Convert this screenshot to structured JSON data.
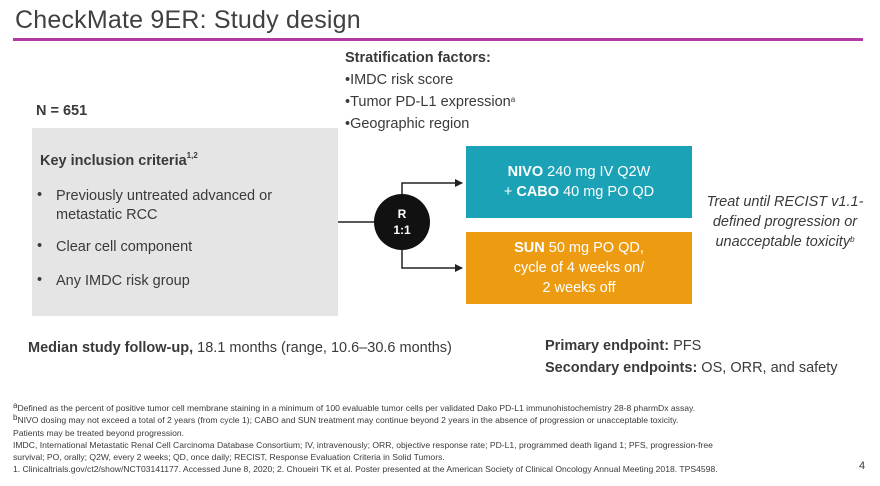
{
  "title": "CheckMate 9ER: Study design",
  "stratification": {
    "heading": "Stratification factors:",
    "items": [
      {
        "text": "•IMDC risk score",
        "sup": ""
      },
      {
        "text": "•Tumor PD-L1 expression",
        "sup": "a"
      },
      {
        "text": "•Geographic region",
        "sup": ""
      }
    ]
  },
  "population": {
    "n_label": "N = 651",
    "heading": "Key inclusion criteria",
    "heading_sup": "1,2",
    "bullet_char": "•",
    "criteria": [
      [
        "Previously untreated advanced or",
        "metastatic RCC"
      ],
      [
        "Clear cell component"
      ],
      [
        "Any IMDC risk group"
      ]
    ]
  },
  "randomization": {
    "line1": "R",
    "line2": "1:1"
  },
  "arms": [
    {
      "line1_bold": "NIVO",
      "line1_rest": " 240 mg IV Q2W",
      "line2_prefix": "+ ",
      "line2_bold": "CABO",
      "line2_rest": " 40 mg PO QD",
      "color": "#1ba2b6"
    },
    {
      "line1_bold": "SUN",
      "line1_rest": " 50 mg PO QD,",
      "line2": "cycle of 4 weeks on/",
      "line3": "2 weeks off",
      "color": "#ed9c12"
    }
  ],
  "treatment": {
    "lines": [
      "Treat until RECIST v1.1-",
      "defined progression or",
      "unacceptable toxicity"
    ],
    "sup": "b"
  },
  "followup": {
    "label": "Median study follow-up,",
    "value": " 18.1 months (range, 10.6–30.6 months)"
  },
  "endpoints": {
    "primary_label": "Primary endpoint:",
    "primary_value": " PFS",
    "secondary_label": "Secondary endpoints:",
    "secondary_value": " OS, ORR, and safety"
  },
  "footnotes": [
    {
      "sup": "a",
      "text": "Defined as the percent of positive tumor cell membrane staining in a minimum of 100 evaluable tumor cells per validated Dako PD-L1 immunohistochemistry 28-8 pharmDx assay."
    },
    {
      "sup": "b",
      "text": "NIVO dosing may not exceed a total of 2 years (from cycle 1); CABO and SUN treatment may continue beyond 2 years in the absence of progression or unacceptable toxicity."
    },
    {
      "sup": "",
      "text": "Patients may be treated beyond progression."
    },
    {
      "sup": "",
      "text": "IMDC, International Metastatic Renal Cell Carcinoma Database Consortium; IV, intravenously; ORR, objective response rate; PD-L1, programmed death ligand 1; PFS, progression-free"
    },
    {
      "sup": "",
      "text": "survival; PO, orally; Q2W, every 2 weeks; QD, once daily; RECIST, Response Evaluation Criteria in Solid Tumors."
    },
    {
      "sup": "",
      "text": "1. Clinicaltrials.gov/ct2/show/NCT03141177. Accessed June 8, 2020; 2. Choueiri TK et al. Poster presented at the American Society of Clinical Oncology Annual Meeting 2018. TPS4598."
    }
  ],
  "page_number": "4"
}
